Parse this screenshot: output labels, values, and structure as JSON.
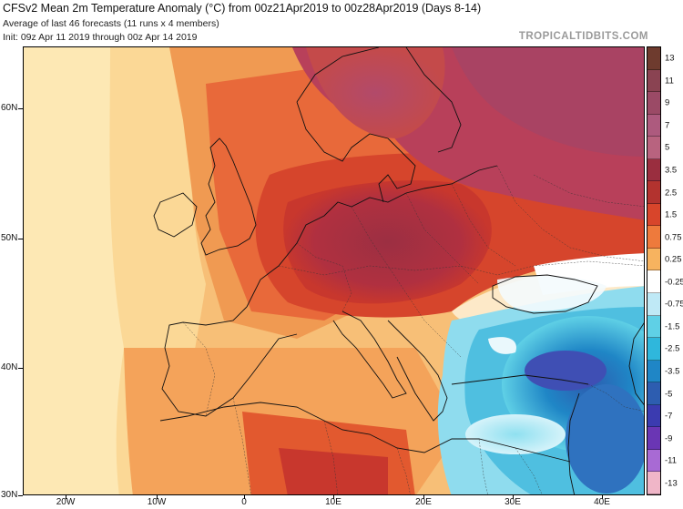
{
  "header": {
    "title": "CFSv2 Mean 2m Temperature Anomaly (°C) from 00z21Apr2019 to 00z28Apr2019 (Days 8-14)",
    "subtitle": "Average of last 46 forecasts (11 runs x 4 members)",
    "init": "Init: 09z Apr 11 2019 through 00z Apr 14 2019",
    "brand": "TROPICALTIDBITS.COM"
  },
  "axes": {
    "lat_labels": [
      "60N",
      "50N",
      "40N",
      "30N"
    ],
    "lon_labels": [
      "20W",
      "10W",
      "0",
      "10E",
      "20E",
      "30E",
      "40E"
    ]
  },
  "colorbar": {
    "labels": [
      "13",
      "11",
      "9",
      "7",
      "5",
      "3.5",
      "2.5",
      "1.5",
      "0.75",
      "0.25",
      "-0.25",
      "-0.75",
      "-1.5",
      "-2.5",
      "-3.5",
      "-5",
      "-7",
      "-9",
      "-11",
      "-13"
    ],
    "colors": [
      "#6e3b2e",
      "#8a4352",
      "#9b4a66",
      "#ad5a7e",
      "#b8637f",
      "#9a2e3f",
      "#b3332f",
      "#d8452b",
      "#ee7a3c",
      "#f7b35f",
      "#ffffff",
      "#bfe9f6",
      "#5fd0e6",
      "#2fb7dc",
      "#1f86c6",
      "#2d5db0",
      "#3b3bb0",
      "#6a36b4",
      "#a86ad4",
      "#f0b6c8"
    ]
  },
  "colors": {
    "land_outline": "#111111",
    "frame": "#000000"
  }
}
